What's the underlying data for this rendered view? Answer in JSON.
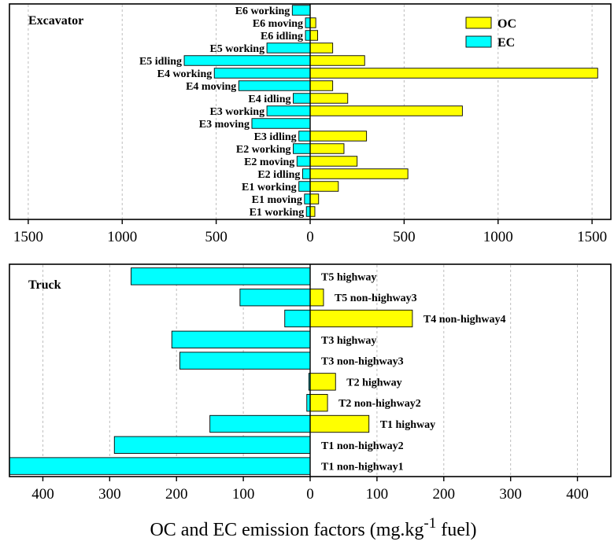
{
  "colors": {
    "oc": "#ffff00",
    "ec": "#00ffff",
    "outline": "#000000",
    "grid": "#bdbdbd"
  },
  "xlabel_main": "OC and EC emission factors (mg.kg",
  "xlabel_sup": "-1",
  "xlabel_tail": " fuel)",
  "chart_data": [
    {
      "type": "bar",
      "orientation": "horizontal-diverging",
      "title": "Excavator",
      "legend": {
        "position": "top-right",
        "entries": [
          "OC",
          "EC"
        ]
      },
      "grid": true,
      "xlim": [
        -1600,
        1600
      ],
      "xticks": [
        -1500,
        -1000,
        -500,
        0,
        500,
        1000,
        1500
      ],
      "xtick_labels": [
        "1500",
        "1000",
        "500",
        "0",
        "500",
        "1000",
        "1500"
      ],
      "categories": [
        "E6 working",
        "E6 moving",
        "E6 idling",
        "E5 working",
        "E5 idling",
        "E4 working",
        "E4 moving",
        "E4 idling",
        "E3 working",
        "E3 moving",
        "E3 idling",
        "E2 working",
        "E2 moving",
        "E2 idling",
        "E1 working",
        "E1 moving",
        "E1 working"
      ],
      "series": [
        {
          "name": "OC",
          "side": "right",
          "values": [
            0,
            30,
            40,
            120,
            290,
            1530,
            120,
            200,
            810,
            0,
            300,
            180,
            250,
            520,
            150,
            45,
            25
          ]
        },
        {
          "name": "EC",
          "side": "left",
          "values": [
            95,
            25,
            25,
            230,
            670,
            510,
            380,
            90,
            230,
            310,
            60,
            90,
            70,
            40,
            60,
            30,
            20
          ]
        }
      ]
    },
    {
      "type": "bar",
      "orientation": "horizontal-diverging",
      "title": "Truck",
      "grid": true,
      "xlim": [
        -450,
        450
      ],
      "xticks": [
        -400,
        -300,
        -200,
        -100,
        0,
        100,
        200,
        300,
        400
      ],
      "xtick_labels": [
        "400",
        "300",
        "200",
        "100",
        "0",
        "100",
        "200",
        "300",
        "400"
      ],
      "categories": [
        "T5 highway",
        "T5 non-highway3",
        "T4 non-highway4",
        "T3 highway",
        "T3 non-highway3",
        "T2 highway",
        "T2 non-highway2",
        "T1 highway",
        "T1 non-highway2",
        "T1 non-highway1"
      ],
      "series": [
        {
          "name": "OC",
          "side": "right",
          "values": [
            0,
            20,
            153,
            0,
            0,
            38,
            26,
            88,
            0,
            0
          ]
        },
        {
          "name": "EC",
          "side": "left",
          "values": [
            268,
            105,
            38,
            207,
            195,
            2,
            5,
            150,
            293,
            450
          ]
        }
      ]
    }
  ]
}
